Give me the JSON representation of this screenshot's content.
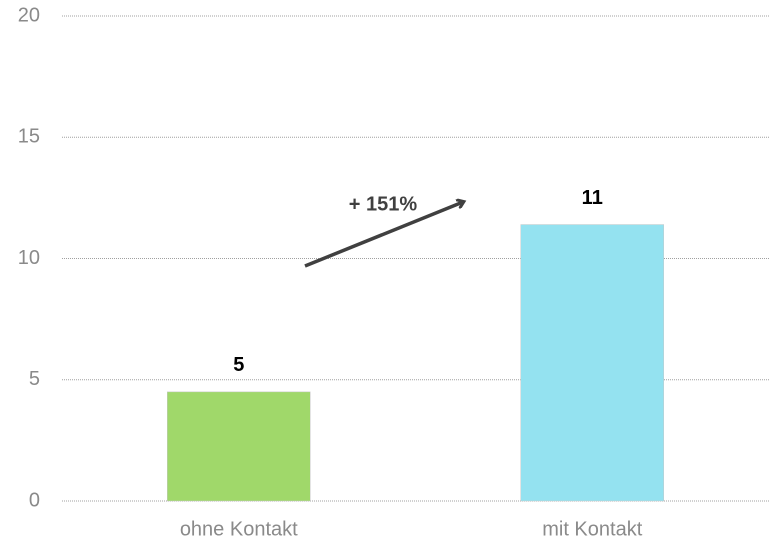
{
  "chart_data": {
    "type": "bar",
    "categories": [
      "ohne Kontakt",
      "mit Kontakt"
    ],
    "values": [
      4.5,
      11.4
    ],
    "value_labels": [
      "5",
      "11"
    ],
    "colors": [
      "#a0d86a",
      "#94e2f0"
    ],
    "annotation": "+ 151%",
    "ylim": [
      0,
      20
    ],
    "yticks": [
      0,
      5,
      10,
      15,
      20
    ],
    "grid": true
  }
}
